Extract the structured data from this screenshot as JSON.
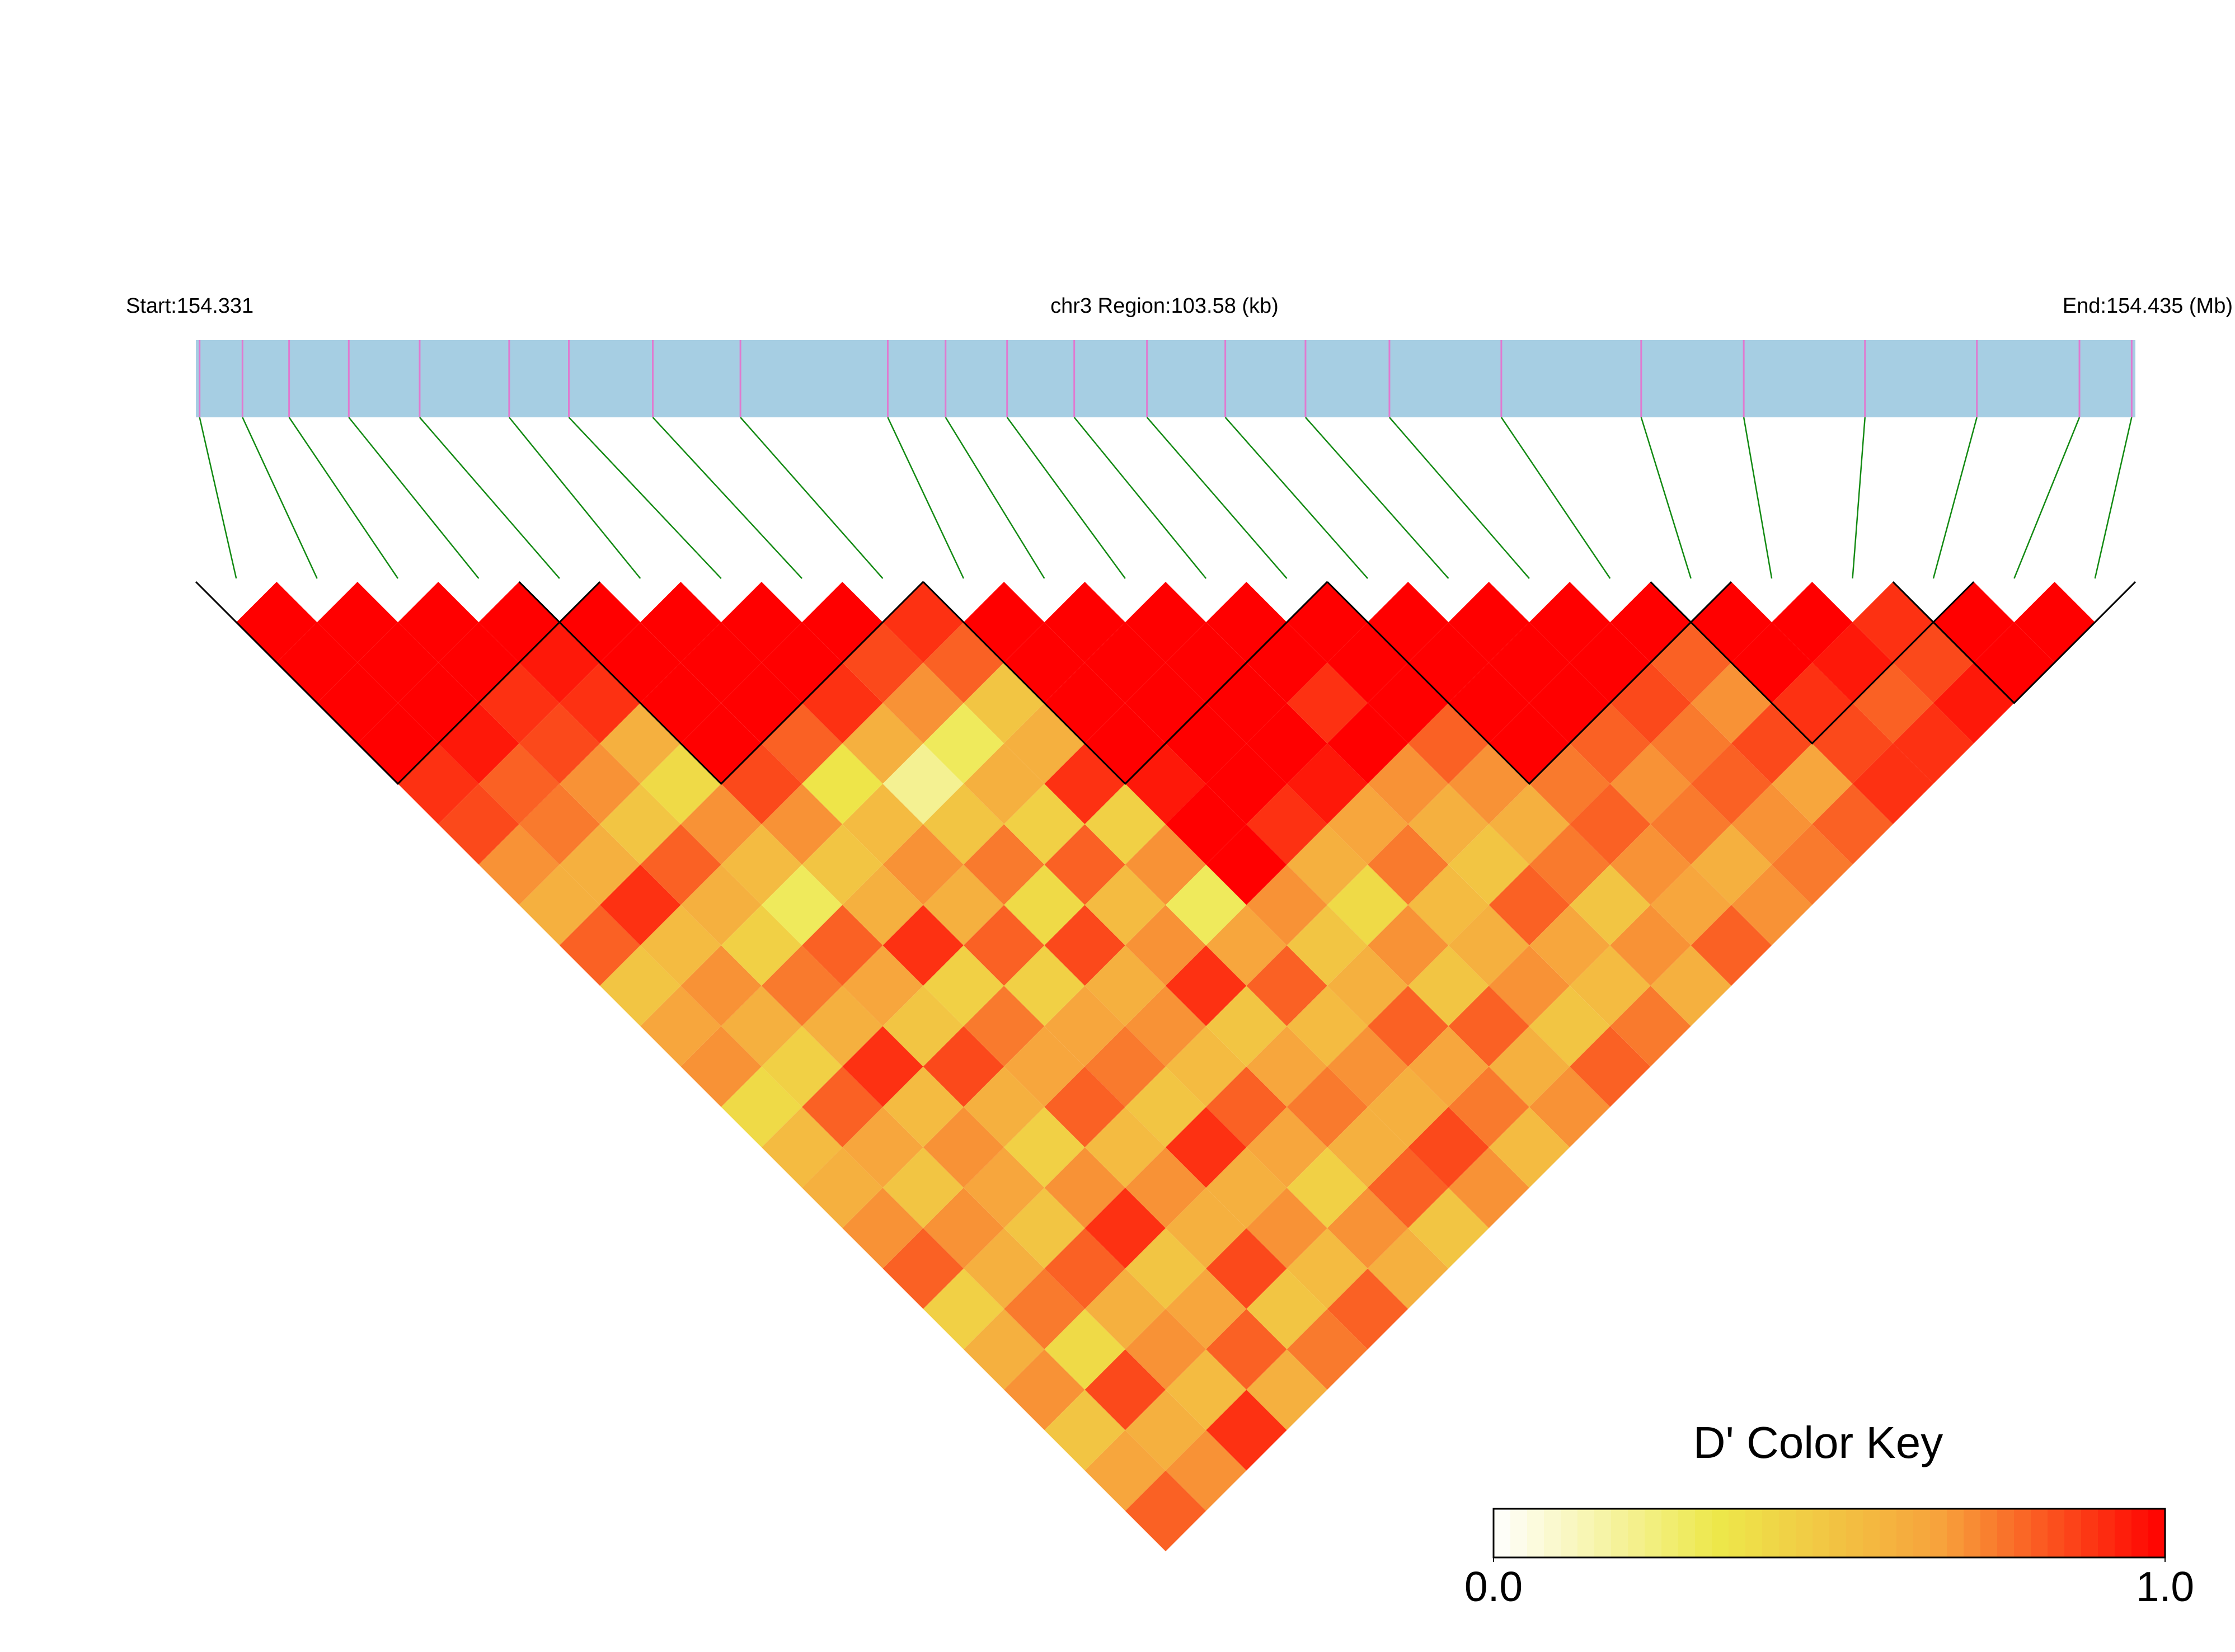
{
  "chart_data": {
    "type": "ld_heatmap",
    "start_label": "Start:154.331",
    "region_label": "chr3 Region:103.58 (kb)",
    "end_label": "End:154.435 (Mb)",
    "xlim": [
      154.331,
      154.435
    ],
    "positions": [
      154.3312,
      154.3335,
      154.336,
      154.3392,
      154.343,
      154.3478,
      154.351,
      154.3555,
      154.3602,
      154.3681,
      154.3712,
      154.3745,
      154.3781,
      154.382,
      154.3862,
      154.3905,
      154.395,
      154.401,
      154.4085,
      154.414,
      154.4205,
      154.4265,
      154.432,
      154.4348
    ],
    "ld": [
      [
        1,
        1,
        1,
        1,
        0.9,
        0.85,
        0.7,
        0.6,
        0.8,
        0.5,
        0.65,
        0.7,
        0.4,
        0.55,
        0.6,
        0.7,
        0.8,
        0.45,
        0.6,
        0.7,
        0.5,
        0.65,
        0.8
      ],
      [
        1,
        1,
        1,
        0.95,
        0.8,
        0.75,
        0.6,
        0.9,
        0.55,
        0.7,
        0.6,
        0.45,
        0.8,
        0.65,
        0.5,
        0.7,
        0.6,
        0.75,
        0.4,
        0.85,
        0.6,
        0.7
      ],
      [
        1,
        1,
        0.9,
        0.85,
        0.7,
        0.5,
        0.8,
        0.6,
        0.45,
        0.75,
        0.6,
        0.9,
        0.55,
        0.7,
        0.65,
        0.5,
        0.8,
        0.6,
        0.7,
        0.55,
        0.9
      ],
      [
        1,
        0.95,
        0.9,
        0.6,
        0.4,
        0.7,
        0.55,
        0.3,
        0.8,
        0.65,
        0.5,
        0.85,
        0.6,
        0.45,
        0.7,
        0.9,
        0.5,
        0.65,
        0.8,
        0.6
      ],
      [
        1,
        1,
        1,
        1,
        0.85,
        0.7,
        0.5,
        0.6,
        0.9,
        0.45,
        0.75,
        0.65,
        0.8,
        0.55,
        0.7,
        0.6,
        0.85,
        0.5,
        0.75
      ],
      [
        1,
        1,
        1,
        0.8,
        0.35,
        0.55,
        0.7,
        0.6,
        0.8,
        0.45,
        0.65,
        0.75,
        0.5,
        0.9,
        0.6,
        0.7,
        0.55,
        0.8
      ],
      [
        1,
        1,
        0.9,
        0.6,
        0.2,
        0.5,
        0.75,
        0.4,
        0.85,
        0.6,
        0.7,
        0.55,
        0.8,
        0.65,
        0.45,
        0.7,
        0.6
      ],
      [
        1,
        0.85,
        0.7,
        0.3,
        0.6,
        0.45,
        0.8,
        0.55,
        0.7,
        0.9,
        0.5,
        0.65,
        0.75,
        0.6,
        0.8,
        0.5
      ],
      [
        0.9,
        0.8,
        0.5,
        0.6,
        0.9,
        0.45,
        0.7,
        0.3,
        0.65,
        0.8,
        0.55,
        0.7,
        0.6,
        0.85,
        0.7
      ],
      [
        1,
        1,
        1,
        1,
        0.95,
        1,
        1,
        0.7,
        0.5,
        0.6,
        0.8,
        0.65,
        0.75,
        0.55
      ],
      [
        1,
        1,
        1,
        1,
        1,
        0.9,
        0.6,
        0.4,
        0.7,
        0.5,
        0.8,
        0.6,
        0.7
      ],
      [
        1,
        1,
        1,
        1,
        0.95,
        0.65,
        0.75,
        0.55,
        0.6,
        0.7,
        0.5,
        0.8
      ],
      [
        1,
        1,
        0.9,
        1,
        0.7,
        0.6,
        0.5,
        0.8,
        0.65,
        0.55,
        0.75
      ],
      [
        1,
        1,
        1,
        0.8,
        0.7,
        0.6,
        0.75,
        0.5,
        0.7,
        0.6
      ],
      [
        1,
        1,
        1,
        1,
        0.75,
        0.8,
        0.7,
        0.65,
        0.8
      ],
      [
        1,
        1,
        1,
        0.8,
        0.7,
        0.75,
        0.6,
        0.7
      ],
      [
        1,
        1,
        0.85,
        0.75,
        0.8,
        0.7,
        0.75
      ],
      [
        1,
        0.8,
        0.7,
        0.85,
        0.65,
        0.8
      ],
      [
        1,
        1,
        0.9,
        0.85,
        0.9
      ],
      [
        1,
        0.95,
        0.8,
        0.9
      ],
      [
        0.9,
        0.85,
        0.95
      ],
      [
        1,
        1
      ],
      [
        1
      ]
    ],
    "blocks": [
      [
        0,
        4
      ],
      [
        4,
        8
      ],
      [
        9,
        13
      ],
      [
        14,
        18
      ],
      [
        18,
        21
      ],
      [
        21,
        23
      ]
    ],
    "colors": [
      "#ffffff",
      "#ede84a",
      "#f7a23c",
      "#ff0000"
    ],
    "key_title": "D' Color Key",
    "clim": [
      0,
      1
    ],
    "key_ticks": [
      {
        "value": 0,
        "label": "0.0"
      },
      {
        "value": 1,
        "label": "1.0"
      }
    ]
  }
}
